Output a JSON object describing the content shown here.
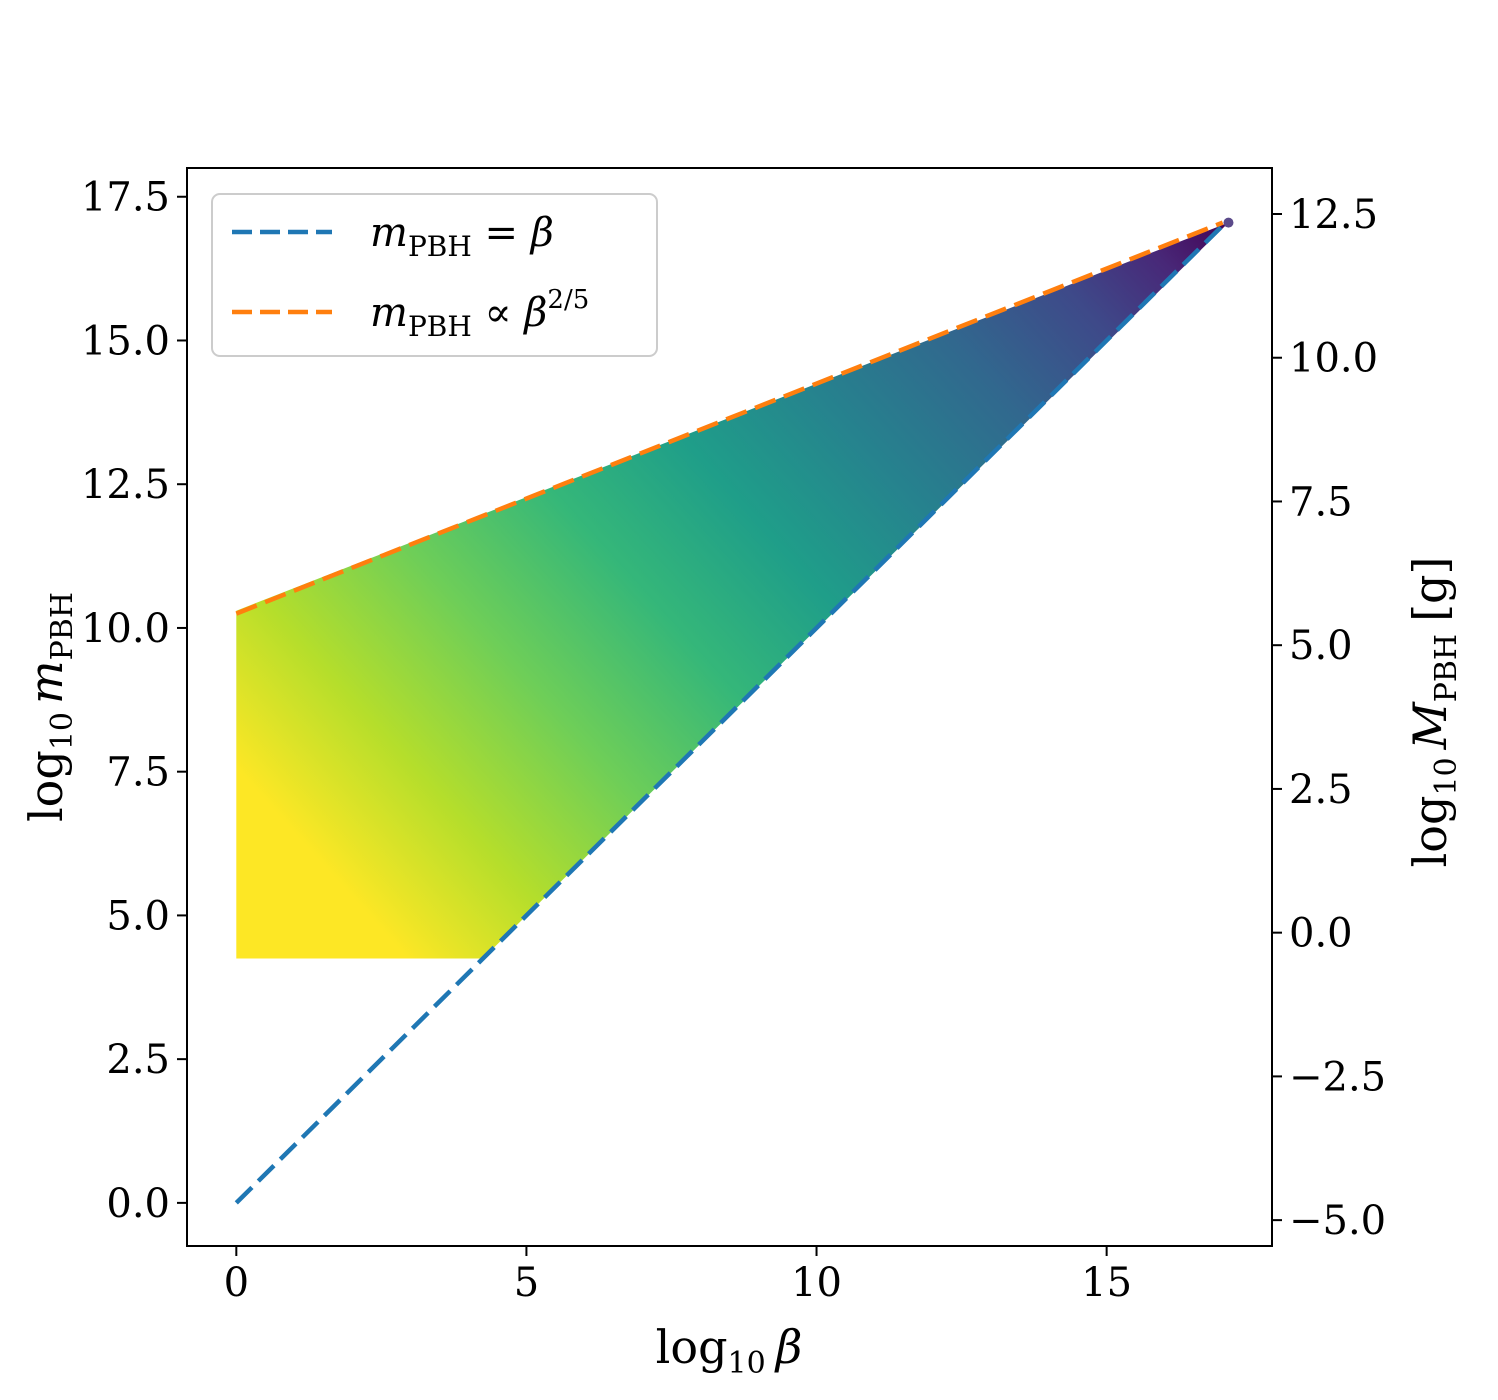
{
  "chart_data": {
    "type": "area",
    "xlabel": {
      "main": "log",
      "sub": "10",
      "var": "β"
    },
    "ylabel": {
      "main": "log",
      "sub": "10",
      "var": "m",
      "var_sub": "PBH"
    },
    "y2label": {
      "main": "log",
      "sub": "10",
      "var": "M",
      "var_sub": "PBH",
      "unit": "[g]"
    },
    "xlim": [
      -0.85,
      17.85
    ],
    "ylim": [
      -0.75,
      18.0
    ],
    "y2lim": [
      -5.45,
      13.3
    ],
    "x_ticks": [
      {
        "value": 0,
        "label": "0"
      },
      {
        "value": 5,
        "label": "5"
      },
      {
        "value": 10,
        "label": "10"
      },
      {
        "value": 15,
        "label": "15"
      }
    ],
    "y_ticks": [
      {
        "value": 0,
        "label": "0.0"
      },
      {
        "value": 2.5,
        "label": "2.5"
      },
      {
        "value": 5,
        "label": "5.0"
      },
      {
        "value": 7.5,
        "label": "7.5"
      },
      {
        "value": 10,
        "label": "10.0"
      },
      {
        "value": 12.5,
        "label": "12.5"
      },
      {
        "value": 15,
        "label": "15.0"
      },
      {
        "value": 17.5,
        "label": "17.5"
      }
    ],
    "y2_ticks": [
      {
        "value": -5,
        "label": "−5.0"
      },
      {
        "value": -2.5,
        "label": "−2.5"
      },
      {
        "value": 0,
        "label": "0.0"
      },
      {
        "value": 2.5,
        "label": "2.5"
      },
      {
        "value": 5,
        "label": "5.0"
      },
      {
        "value": 7.5,
        "label": "7.5"
      },
      {
        "value": 10,
        "label": "10.0"
      },
      {
        "value": 12.5,
        "label": "12.5"
      }
    ],
    "region": {
      "polygon": [
        [
          0,
          4.25
        ],
        [
          0,
          10.3
        ],
        [
          17.1,
          17.05
        ],
        [
          4.25,
          4.25
        ]
      ],
      "colormap": "viridis"
    },
    "series": [
      {
        "legend_var": "m",
        "legend_sub": "PBH",
        "legend_rel": " = β",
        "legend_sup": "",
        "color": "#1f77b4",
        "style": "dashed",
        "x": [
          0,
          17.0
        ],
        "y": [
          0,
          17.0
        ]
      },
      {
        "legend_var": "m",
        "legend_sub": "PBH",
        "legend_rel": " ∝ β",
        "legend_sup": "2/5",
        "color": "#ff7f0e",
        "style": "dashed",
        "x": [
          0,
          17.0
        ],
        "y": [
          10.25,
          17.05
        ]
      }
    ],
    "legend_position": "top-left",
    "grid": false
  }
}
